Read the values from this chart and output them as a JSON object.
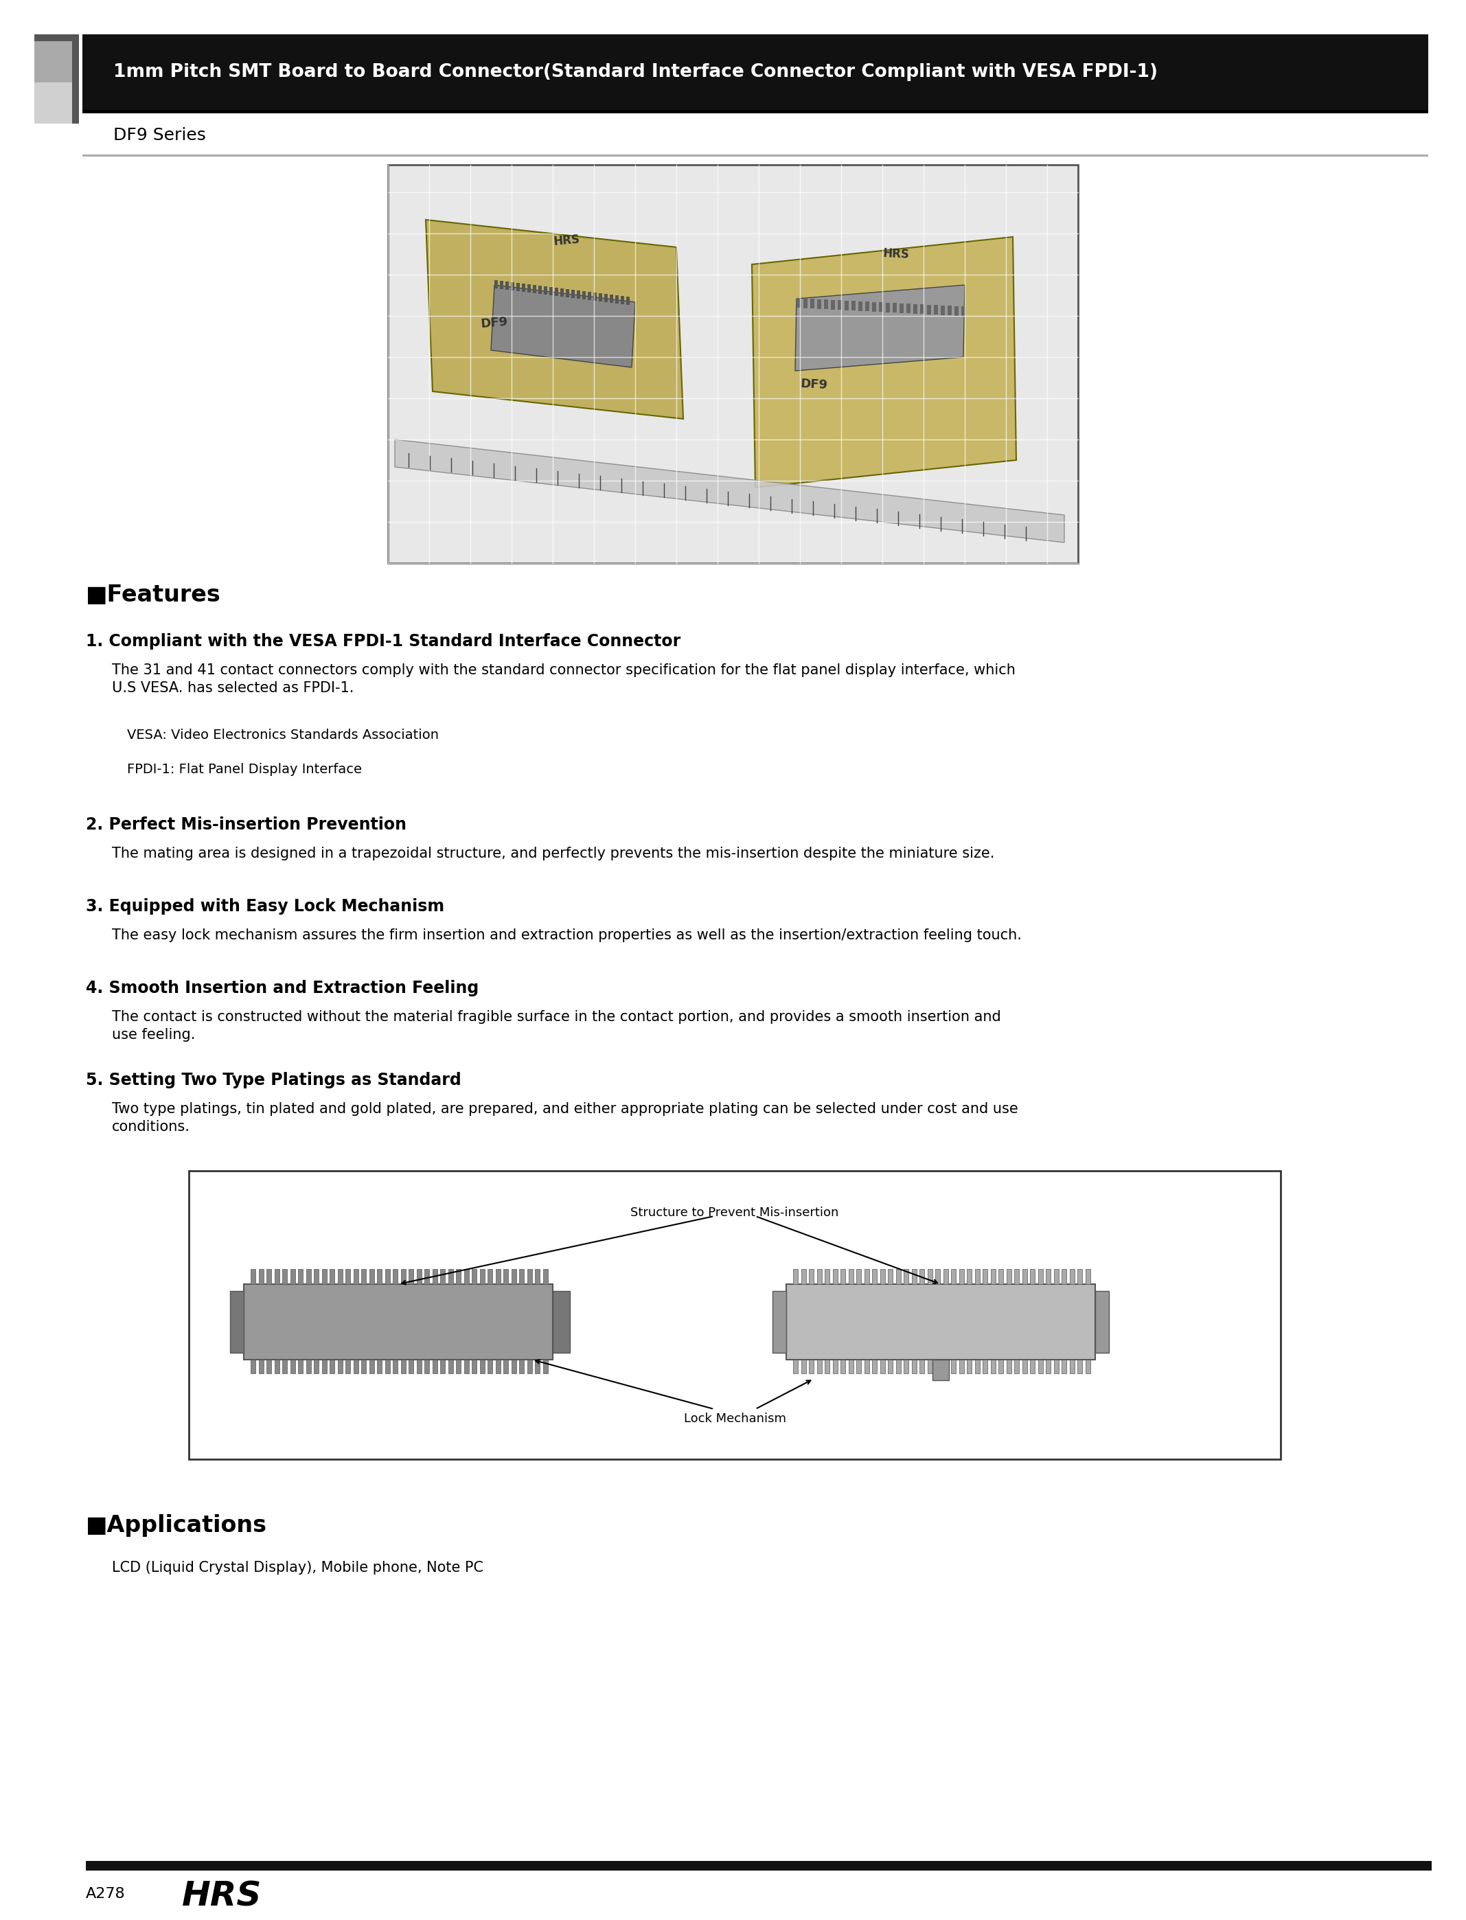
{
  "page_bg": "#ffffff",
  "header_text": "1mm Pitch SMT Board to Board Connector(Standard Interface Connector Compliant with VESA FPDI-1)",
  "series_text": "DF9 Series",
  "features_title": "■Features",
  "feature1_title": "1. Compliant with the VESA FPDI-1 Standard Interface Connector",
  "feature1_body": "The 31 and 41 contact connectors comply with the standard connector specification for the flat panel display interface, which\nU.S VESA. has selected as FPDI-1.",
  "feature1_note1": "VESA: Video Electronics Standards Association",
  "feature1_note2": "FPDI-1: Flat Panel Display Interface",
  "feature2_title": "2. Perfect Mis-insertion Prevention",
  "feature2_body": "The mating area is designed in a trapezoidal structure, and perfectly prevents the mis-insertion despite the miniature size.",
  "feature3_title": "3. Equipped with Easy Lock Mechanism",
  "feature3_body": "The easy lock mechanism assures the firm insertion and extraction properties as well as the insertion/extraction feeling touch.",
  "feature4_title": "4. Smooth Insertion and Extraction Feeling",
  "feature4_body": "The contact is constructed without the material fragible surface in the contact portion, and provides a smooth insertion and\nuse feeling.",
  "feature5_title": "5. Setting Two Type Platings as Standard",
  "feature5_body": "Two type platings, tin plated and gold plated, are prepared, and either appropriate plating can be selected under cost and use\nconditions.",
  "diagram_label1": "Structure to Prevent Mis-insertion",
  "diagram_label2": "Lock Mechanism",
  "applications_title": "■Applications",
  "applications_body": "LCD (Liquid Crystal Display), Mobile phone, Note PC",
  "footer_page": "A278",
  "footer_logo": "HRS"
}
